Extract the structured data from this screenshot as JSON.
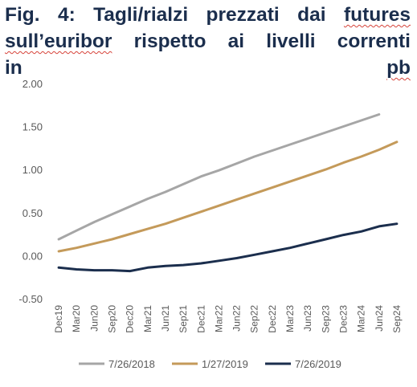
{
  "title": {
    "line1_pre": "Fig. 4: Tagli/rialzi prezzati dai ",
    "line1_underlined": "futures",
    "line2_pre": "",
    "line2_underlined": "sull’euribor",
    "line2_post": " rispetto ai livelli correnti",
    "line3_pre": "in ",
    "line3_underlined": "pb"
  },
  "chart_data": {
    "type": "line",
    "title": "Fig. 4: Tagli/rialzi prezzati dai futures sull’euribor rispetto ai livelli correnti in pb",
    "xlabel": "",
    "ylabel": "",
    "ylim": [
      -0.5,
      2.0
    ],
    "yticks": [
      "2.00",
      "1.50",
      "1.00",
      "0.50",
      "0.00",
      "-0.50"
    ],
    "ytick_values": [
      2.0,
      1.5,
      1.0,
      0.5,
      0.0,
      -0.5
    ],
    "categories": [
      "Dec19",
      "Mar20",
      "Jun20",
      "Sep20",
      "Dec20",
      "Mar21",
      "Jun21",
      "Sep21",
      "Dec21",
      "Mar22",
      "Jun22",
      "Sep22",
      "Dec22",
      "Mar23",
      "Jun23",
      "Sep23",
      "Dec23",
      "Mar24",
      "Jun24",
      "Sep24"
    ],
    "grid": false,
    "legend_position": "bottom",
    "series": [
      {
        "name": "7/26/2018",
        "color": "#a6a6a6",
        "values": [
          0.2,
          0.3,
          0.4,
          0.49,
          0.58,
          0.67,
          0.75,
          0.84,
          0.93,
          1.0,
          1.08,
          1.16,
          1.23,
          1.3,
          1.37,
          1.44,
          1.51,
          1.58,
          1.65,
          null
        ]
      },
      {
        "name": "1/27/2019",
        "color": "#c49a5a",
        "values": [
          0.06,
          0.1,
          0.15,
          0.2,
          0.26,
          0.32,
          0.38,
          0.45,
          0.52,
          0.59,
          0.66,
          0.73,
          0.8,
          0.87,
          0.94,
          1.01,
          1.09,
          1.16,
          1.24,
          1.33
        ]
      },
      {
        "name": "7/26/2019",
        "color": "#1b2e4d",
        "values": [
          -0.13,
          -0.15,
          -0.16,
          -0.16,
          -0.17,
          -0.13,
          -0.11,
          -0.1,
          -0.08,
          -0.05,
          -0.02,
          0.02,
          0.06,
          0.1,
          0.15,
          0.2,
          0.25,
          0.29,
          0.35,
          0.38
        ]
      }
    ]
  }
}
